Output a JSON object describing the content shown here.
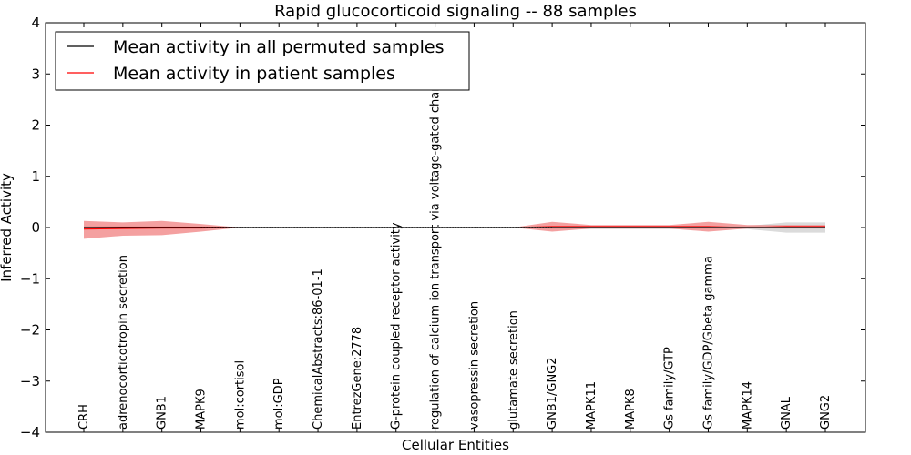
{
  "chart_data": {
    "type": "line",
    "title": "Rapid glucocorticoid signaling -- 88 samples",
    "xlabel": "Cellular Entities",
    "ylabel": "Inferred Activity",
    "ylim": [
      -4,
      4
    ],
    "yticks": [
      -4,
      -3,
      -2,
      -1,
      0,
      1,
      2,
      3,
      4
    ],
    "legend_position": "top-left",
    "categories": [
      "CRH",
      "adrenocorticotropin secretion",
      "GNB1",
      "MAPK9",
      "mol:cortisol",
      "mol:GDP",
      "ChemicalAbstracts:86-01-1",
      "EntrezGene:2778",
      "G-protein coupled receptor activity",
      "regulation of calcium ion transport via voltage-gated channel",
      "vasopressin secretion",
      "glutamate secretion",
      "GNB1/GNG2",
      "MAPK11",
      "MAPK8",
      "Gs family/GTP",
      "Gs family/GDP/Gbeta gamma",
      "MAPK14",
      "GNAL",
      "GNG2"
    ],
    "series": [
      {
        "name": "Mean activity in all permuted samples",
        "color": "#000000",
        "values": [
          0,
          0,
          0,
          0,
          0,
          0,
          0,
          0,
          0,
          0,
          0,
          0,
          0,
          0,
          0,
          0,
          0,
          0,
          0,
          0
        ],
        "lower": [
          -0.03,
          -0.03,
          -0.03,
          -0.02,
          0,
          0,
          0,
          0,
          0,
          0,
          0,
          0,
          -0.03,
          -0.03,
          -0.03,
          -0.03,
          -0.03,
          -0.03,
          -0.1,
          -0.1
        ],
        "upper": [
          0.03,
          0.03,
          0.03,
          0.02,
          0,
          0,
          0,
          0,
          0,
          0,
          0,
          0,
          0.03,
          0.03,
          0.03,
          0.03,
          0.03,
          0.03,
          0.1,
          0.1
        ]
      },
      {
        "name": "Mean activity in patient samples",
        "color": "#ff0000",
        "fill": "#f08080",
        "values": [
          -0.03,
          -0.02,
          -0.01,
          -0.01,
          0,
          0,
          0,
          0,
          0,
          0,
          0,
          0,
          0.02,
          0.02,
          0.02,
          0.02,
          0.02,
          0,
          0.02,
          0.02
        ],
        "lower": [
          -0.22,
          -0.16,
          -0.15,
          -0.08,
          0,
          0,
          0,
          0,
          0,
          0,
          0,
          0,
          -0.08,
          -0.02,
          -0.02,
          -0.02,
          -0.08,
          -0.02,
          -0.02,
          -0.02
        ],
        "upper": [
          0.13,
          0.1,
          0.13,
          0.07,
          0,
          0,
          0,
          0,
          0,
          0,
          0,
          0,
          0.11,
          0.05,
          0.05,
          0.05,
          0.11,
          0.05,
          0.05,
          0.05
        ]
      }
    ]
  }
}
